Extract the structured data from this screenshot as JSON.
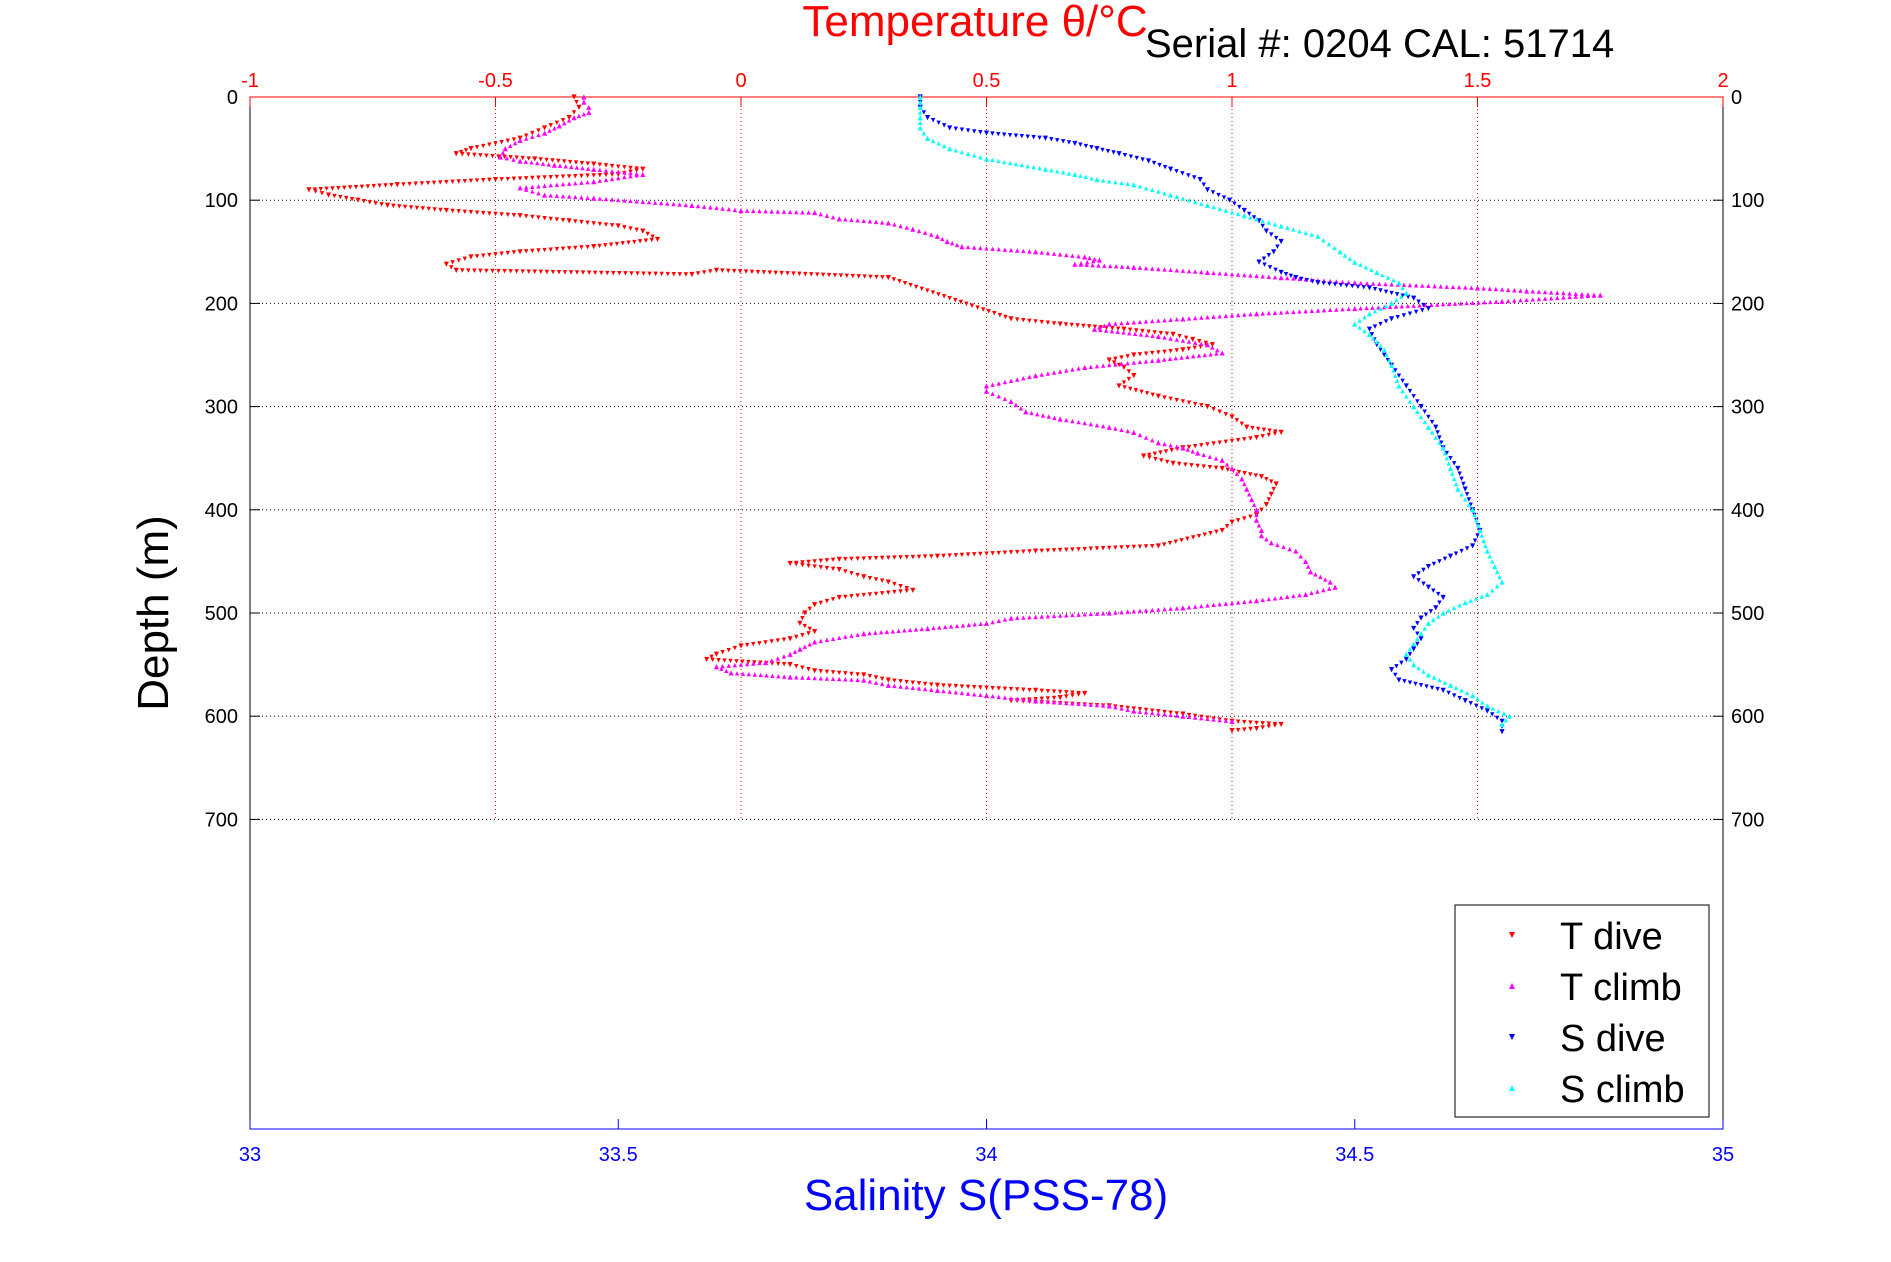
{
  "chart_data": {
    "type": "scatter",
    "title": "Temperature θ/°C",
    "subtitle": "Serial #: 0204  CAL: 51714",
    "ylabel": "Depth (m)",
    "xlabel": "Salinity S(PSS-78)",
    "ylim": [
      0,
      1000
    ],
    "y_reversed": true,
    "y_ticks": [
      0,
      100,
      200,
      300,
      400,
      500,
      600,
      700
    ],
    "y_tick_labels": [
      "0",
      "100",
      "200",
      "300",
      "400",
      "500",
      "600",
      "700"
    ],
    "temperature_axis": {
      "position": "top",
      "range": [
        -1,
        2
      ],
      "ticks": [
        -1,
        -0.5,
        0,
        0.5,
        1,
        1.5,
        2
      ],
      "tick_labels": [
        "-1",
        "-0.5",
        "0",
        "0.5",
        "1",
        "1.5",
        "2"
      ],
      "color": "#ff0000"
    },
    "salinity_axis": {
      "position": "bottom",
      "range": [
        33,
        35
      ],
      "ticks": [
        33,
        33.5,
        34,
        34.5,
        35
      ],
      "tick_labels": [
        "33",
        "33.5",
        "34",
        "34.5",
        "35"
      ],
      "color": "#0000ff"
    },
    "grid": true,
    "legend_position": "bottom-right",
    "series": [
      {
        "name": "T dive",
        "axis": "temperature",
        "marker": "triangle-down",
        "color": "#ff0000",
        "points": [
          [
            -0.34,
            0
          ],
          [
            -0.33,
            10
          ],
          [
            -0.35,
            20
          ],
          [
            -0.4,
            30
          ],
          [
            -0.45,
            40
          ],
          [
            -0.55,
            50
          ],
          [
            -0.58,
            55
          ],
          [
            -0.42,
            60
          ],
          [
            -0.3,
            65
          ],
          [
            -0.2,
            70
          ],
          [
            -0.25,
            75
          ],
          [
            -0.5,
            80
          ],
          [
            -0.7,
            85
          ],
          [
            -0.88,
            90
          ],
          [
            -0.84,
            95
          ],
          [
            -0.78,
            100
          ],
          [
            -0.72,
            105
          ],
          [
            -0.6,
            110
          ],
          [
            -0.45,
            115
          ],
          [
            -0.35,
            120
          ],
          [
            -0.25,
            125
          ],
          [
            -0.2,
            130
          ],
          [
            -0.17,
            138
          ],
          [
            -0.3,
            145
          ],
          [
            -0.45,
            150
          ],
          [
            -0.55,
            155
          ],
          [
            -0.6,
            162
          ],
          [
            -0.58,
            168
          ],
          [
            -0.1,
            172
          ],
          [
            -0.05,
            168
          ],
          [
            0.3,
            175
          ],
          [
            0.55,
            215
          ],
          [
            0.65,
            220
          ],
          [
            0.78,
            225
          ],
          [
            0.88,
            230
          ],
          [
            0.92,
            235
          ],
          [
            0.96,
            240
          ],
          [
            0.9,
            245
          ],
          [
            0.8,
            250
          ],
          [
            0.75,
            255
          ],
          [
            0.78,
            262
          ],
          [
            0.8,
            270
          ],
          [
            0.77,
            280
          ],
          [
            0.85,
            290
          ],
          [
            0.95,
            300
          ],
          [
            1.0,
            310
          ],
          [
            1.03,
            320
          ],
          [
            1.1,
            325
          ],
          [
            1.05,
            330
          ],
          [
            0.9,
            340
          ],
          [
            0.82,
            348
          ],
          [
            0.88,
            355
          ],
          [
            0.98,
            360
          ],
          [
            1.06,
            368
          ],
          [
            1.09,
            375
          ],
          [
            1.08,
            385
          ],
          [
            1.07,
            395
          ],
          [
            1.05,
            405
          ],
          [
            1.0,
            412
          ],
          [
            0.98,
            420
          ],
          [
            0.85,
            435
          ],
          [
            0.6,
            440
          ],
          [
            0.4,
            445
          ],
          [
            0.2,
            448
          ],
          [
            0.1,
            452
          ],
          [
            0.2,
            458
          ],
          [
            0.25,
            465
          ],
          [
            0.3,
            470
          ],
          [
            0.35,
            478
          ],
          [
            0.2,
            485
          ],
          [
            0.15,
            492
          ],
          [
            0.13,
            500
          ],
          [
            0.12,
            510
          ],
          [
            0.15,
            518
          ],
          [
            0.1,
            525
          ],
          [
            0.0,
            532
          ],
          [
            -0.05,
            540
          ],
          [
            -0.07,
            545
          ],
          [
            0.1,
            550
          ],
          [
            0.15,
            556
          ],
          [
            0.25,
            560
          ],
          [
            0.3,
            565
          ],
          [
            0.4,
            570
          ],
          [
            0.6,
            575
          ],
          [
            0.7,
            578
          ],
          [
            0.65,
            582
          ],
          [
            0.55,
            585
          ],
          [
            0.75,
            590
          ],
          [
            0.9,
            598
          ],
          [
            1.0,
            605
          ],
          [
            1.1,
            608
          ],
          [
            1.05,
            612
          ],
          [
            1.0,
            614
          ]
        ]
      },
      {
        "name": "T climb",
        "axis": "temperature",
        "marker": "triangle-up",
        "color": "#ff00ff",
        "points": [
          [
            -0.32,
            0
          ],
          [
            -0.32,
            5
          ],
          [
            -0.31,
            10
          ],
          [
            -0.31,
            15
          ],
          [
            -0.34,
            20
          ],
          [
            -0.37,
            28
          ],
          [
            -0.4,
            35
          ],
          [
            -0.45,
            42
          ],
          [
            -0.48,
            50
          ],
          [
            -0.49,
            58
          ],
          [
            -0.45,
            62
          ],
          [
            -0.38,
            66
          ],
          [
            -0.3,
            70
          ],
          [
            -0.2,
            75
          ],
          [
            -0.3,
            82
          ],
          [
            -0.45,
            88
          ],
          [
            -0.4,
            95
          ],
          [
            -0.3,
            98
          ],
          [
            -0.1,
            105
          ],
          [
            0.0,
            110
          ],
          [
            0.15,
            112
          ],
          [
            0.2,
            118
          ],
          [
            0.3,
            122
          ],
          [
            0.35,
            128
          ],
          [
            0.4,
            135
          ],
          [
            0.42,
            140
          ],
          [
            0.45,
            145
          ],
          [
            0.6,
            150
          ],
          [
            0.7,
            155
          ],
          [
            0.73,
            158
          ],
          [
            0.68,
            162
          ],
          [
            0.8,
            165
          ],
          [
            0.95,
            170
          ],
          [
            1.1,
            175
          ],
          [
            1.25,
            180
          ],
          [
            1.5,
            185
          ],
          [
            1.6,
            188
          ],
          [
            1.75,
            192
          ],
          [
            1.55,
            198
          ],
          [
            1.25,
            205
          ],
          [
            1.05,
            210
          ],
          [
            0.9,
            215
          ],
          [
            0.75,
            220
          ],
          [
            0.72,
            225
          ],
          [
            0.85,
            232
          ],
          [
            0.95,
            240
          ],
          [
            0.98,
            248
          ],
          [
            0.85,
            255
          ],
          [
            0.7,
            262
          ],
          [
            0.6,
            270
          ],
          [
            0.5,
            280
          ],
          [
            0.5,
            285
          ],
          [
            0.55,
            295
          ],
          [
            0.58,
            305
          ],
          [
            0.65,
            312
          ],
          [
            0.75,
            320
          ],
          [
            0.8,
            325
          ],
          [
            0.85,
            335
          ],
          [
            0.9,
            340
          ],
          [
            0.93,
            345
          ],
          [
            0.98,
            352
          ],
          [
            1.0,
            360
          ],
          [
            1.02,
            370
          ],
          [
            1.03,
            380
          ],
          [
            1.04,
            390
          ],
          [
            1.05,
            400
          ],
          [
            1.05,
            410
          ],
          [
            1.06,
            420
          ],
          [
            1.06,
            425
          ],
          [
            1.08,
            432
          ],
          [
            1.13,
            440
          ],
          [
            1.15,
            450
          ],
          [
            1.16,
            460
          ],
          [
            1.2,
            470
          ],
          [
            1.21,
            475
          ],
          [
            1.15,
            482
          ],
          [
            1.05,
            488
          ],
          [
            0.9,
            495
          ],
          [
            0.75,
            500
          ],
          [
            0.55,
            505
          ],
          [
            0.5,
            510
          ],
          [
            0.38,
            515
          ],
          [
            0.25,
            520
          ],
          [
            0.15,
            528
          ],
          [
            0.12,
            535
          ],
          [
            0.1,
            540
          ],
          [
            0.05,
            548
          ],
          [
            -0.05,
            552
          ],
          [
            -0.02,
            558
          ],
          [
            0.1,
            562
          ],
          [
            0.25,
            565
          ],
          [
            0.3,
            570
          ],
          [
            0.4,
            575
          ],
          [
            0.5,
            580
          ],
          [
            0.6,
            585
          ],
          [
            0.75,
            590
          ],
          [
            0.8,
            595
          ],
          [
            0.9,
            600
          ],
          [
            1.0,
            605
          ]
        ]
      },
      {
        "name": "S dive",
        "axis": "salinity",
        "marker": "triangle-down",
        "color": "#0000ff",
        "points": [
          [
            33.91,
            0
          ],
          [
            33.91,
            10
          ],
          [
            33.92,
            20
          ],
          [
            33.95,
            30
          ],
          [
            34.0,
            35
          ],
          [
            34.08,
            40
          ],
          [
            34.12,
            45
          ],
          [
            34.15,
            50
          ],
          [
            34.18,
            55
          ],
          [
            34.22,
            62
          ],
          [
            34.25,
            70
          ],
          [
            34.29,
            80
          ],
          [
            34.3,
            90
          ],
          [
            34.33,
            100
          ],
          [
            34.35,
            110
          ],
          [
            34.37,
            120
          ],
          [
            34.38,
            130
          ],
          [
            34.4,
            140
          ],
          [
            34.39,
            150
          ],
          [
            34.37,
            160
          ],
          [
            34.4,
            170
          ],
          [
            34.42,
            175
          ],
          [
            34.45,
            180
          ],
          [
            34.52,
            185
          ],
          [
            34.58,
            195
          ],
          [
            34.6,
            205
          ],
          [
            34.55,
            215
          ],
          [
            34.52,
            225
          ],
          [
            34.53,
            240
          ],
          [
            34.55,
            260
          ],
          [
            34.57,
            280
          ],
          [
            34.59,
            300
          ],
          [
            34.61,
            320
          ],
          [
            34.62,
            340
          ],
          [
            34.64,
            360
          ],
          [
            34.65,
            380
          ],
          [
            34.66,
            400
          ],
          [
            34.67,
            420
          ],
          [
            34.66,
            435
          ],
          [
            34.63,
            445
          ],
          [
            34.6,
            455
          ],
          [
            34.58,
            465
          ],
          [
            34.6,
            475
          ],
          [
            34.62,
            485
          ],
          [
            34.61,
            495
          ],
          [
            34.59,
            505
          ],
          [
            34.58,
            515
          ],
          [
            34.59,
            525
          ],
          [
            34.58,
            535
          ],
          [
            34.57,
            545
          ],
          [
            34.55,
            555
          ],
          [
            34.56,
            565
          ],
          [
            34.62,
            575
          ],
          [
            34.65,
            585
          ],
          [
            34.68,
            595
          ],
          [
            34.7,
            605
          ],
          [
            34.7,
            615
          ]
        ]
      },
      {
        "name": "S climb",
        "axis": "salinity",
        "marker": "triangle-up",
        "color": "#00ffff",
        "points": [
          [
            33.91,
            0
          ],
          [
            33.91,
            10
          ],
          [
            33.91,
            20
          ],
          [
            33.91,
            30
          ],
          [
            33.92,
            40
          ],
          [
            33.95,
            50
          ],
          [
            34.0,
            60
          ],
          [
            34.08,
            70
          ],
          [
            34.12,
            75
          ],
          [
            34.15,
            80
          ],
          [
            34.2,
            85
          ],
          [
            34.25,
            95
          ],
          [
            34.3,
            105
          ],
          [
            34.35,
            115
          ],
          [
            34.4,
            125
          ],
          [
            34.45,
            135
          ],
          [
            34.48,
            150
          ],
          [
            34.5,
            160
          ],
          [
            34.53,
            170
          ],
          [
            34.56,
            180
          ],
          [
            34.57,
            190
          ],
          [
            34.55,
            200
          ],
          [
            34.52,
            210
          ],
          [
            34.5,
            220
          ],
          [
            34.52,
            230
          ],
          [
            34.54,
            245
          ],
          [
            34.55,
            260
          ],
          [
            34.56,
            280
          ],
          [
            34.58,
            300
          ],
          [
            34.6,
            320
          ],
          [
            34.62,
            340
          ],
          [
            34.63,
            360
          ],
          [
            34.64,
            380
          ],
          [
            34.66,
            400
          ],
          [
            34.67,
            420
          ],
          [
            34.68,
            440
          ],
          [
            34.69,
            455
          ],
          [
            34.7,
            470
          ],
          [
            34.68,
            482
          ],
          [
            34.65,
            490
          ],
          [
            34.62,
            500
          ],
          [
            34.6,
            510
          ],
          [
            34.59,
            520
          ],
          [
            34.58,
            530
          ],
          [
            34.57,
            540
          ],
          [
            34.58,
            550
          ],
          [
            34.6,
            560
          ],
          [
            34.63,
            570
          ],
          [
            34.66,
            580
          ],
          [
            34.68,
            590
          ],
          [
            34.71,
            600
          ],
          [
            34.7,
            608
          ]
        ]
      }
    ]
  }
}
